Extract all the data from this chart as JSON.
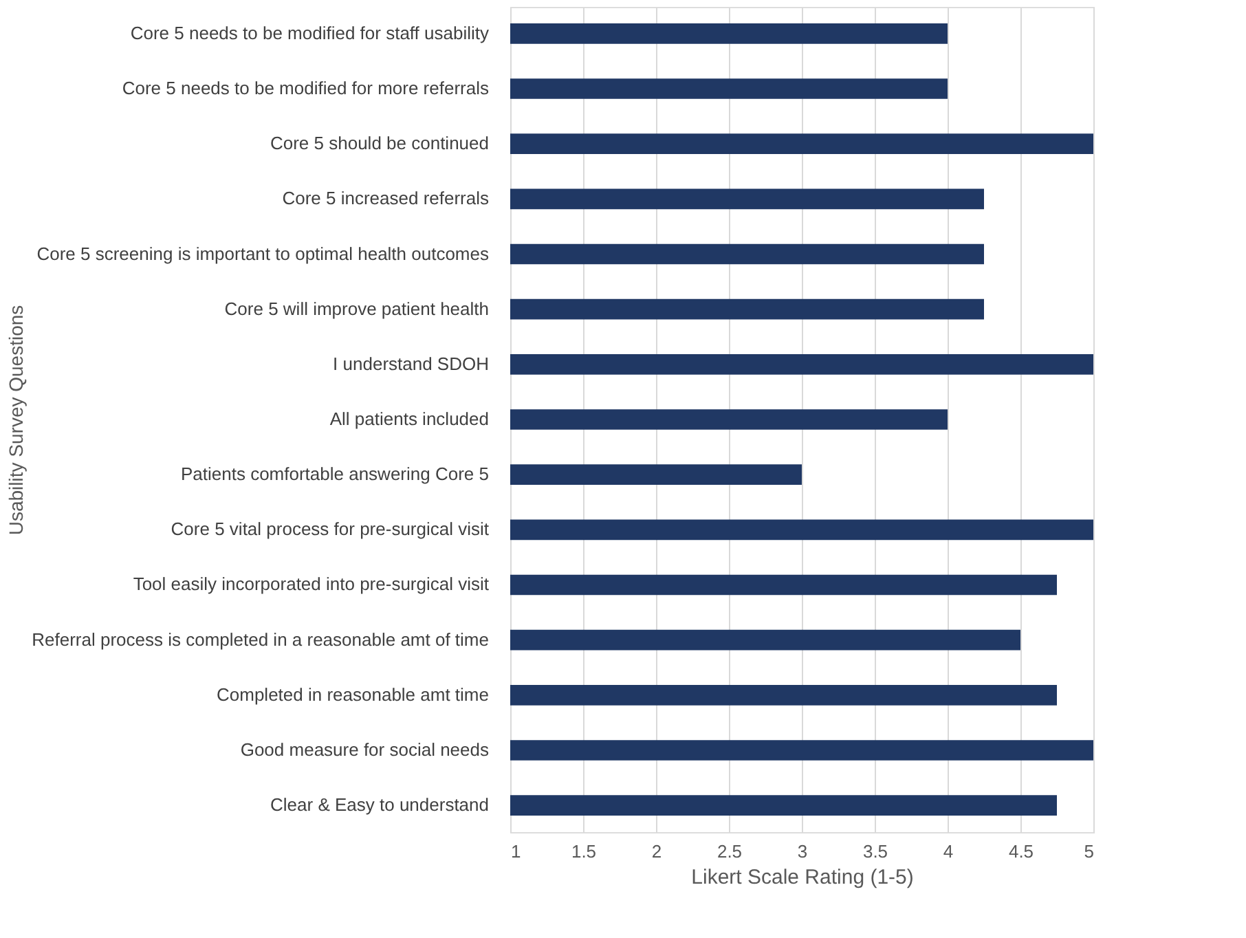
{
  "chart_data": {
    "type": "bar",
    "orientation": "horizontal",
    "xlabel": "Likert Scale Rating (1-5)",
    "ylabel": "Usability Survey Questions",
    "categories": [
      "Core 5 needs to be modified for staff usability",
      "Core 5 needs to be modified for more referrals",
      "Core 5 should be continued",
      "Core 5 increased referrals",
      "Core 5 screening is important to optimal health outcomes",
      "Core 5 will improve patient health",
      "I understand SDOH",
      "All patients included",
      "Patients comfortable answering Core 5",
      "Core 5 vital  process for pre-surgical visit",
      "Tool easily incorporated into pre-surgical visit",
      "Referral process is completed in a reasonable amt of time",
      "Completed in reasonable amt time",
      "Good measure for social needs",
      "Clear & Easy to understand"
    ],
    "values": [
      4,
      4,
      5,
      4.25,
      4.25,
      4.25,
      5,
      4,
      3,
      5,
      4.75,
      4.5,
      4.75,
      5,
      4.75
    ],
    "color": "#203864",
    "xlim": [
      1,
      5
    ],
    "xticks": [
      1,
      1.5,
      2,
      2.5,
      3,
      3.5,
      4,
      4.5,
      5
    ],
    "grid": "x"
  }
}
